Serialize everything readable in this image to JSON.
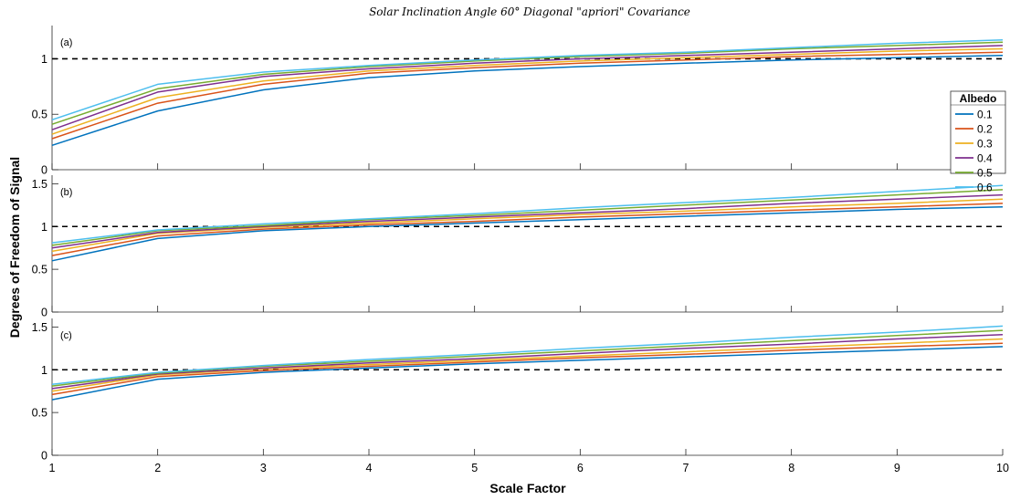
{
  "title": "Solar Inclination Angle 60° Diagonal \"apriori\" Covariance",
  "ylabel": "Degrees of Freedom of Signal",
  "xlabel": "Scale Factor",
  "colors": [
    "#0072bd",
    "#d95319",
    "#edb120",
    "#7e2f8e",
    "#77ac30",
    "#4dbeee"
  ],
  "legend": {
    "title": "Albedo",
    "entries": [
      "0.1",
      "0.2",
      "0.3",
      "0.4",
      "0.5",
      "0.6"
    ],
    "placement": "right"
  },
  "chart_data": [
    {
      "type": "line",
      "panel_label": "(a)",
      "x": [
        1,
        2,
        3,
        4,
        5,
        6,
        7,
        8,
        9,
        10
      ],
      "xlim": [
        1,
        10
      ],
      "ylim": [
        0,
        1.3
      ],
      "yticks": [
        0,
        0.5,
        1
      ],
      "ytick_labels": [
        "0",
        "0.5",
        "1"
      ],
      "reference_line": 1,
      "grid": false,
      "series": [
        {
          "name": "0.1",
          "values": [
            0.22,
            0.53,
            0.72,
            0.83,
            0.89,
            0.93,
            0.96,
            0.99,
            1.01,
            1.03
          ]
        },
        {
          "name": "0.2",
          "values": [
            0.28,
            0.6,
            0.77,
            0.87,
            0.92,
            0.96,
            0.99,
            1.02,
            1.04,
            1.06
          ]
        },
        {
          "name": "0.3",
          "values": [
            0.32,
            0.65,
            0.8,
            0.89,
            0.94,
            0.98,
            1.01,
            1.04,
            1.07,
            1.09
          ]
        },
        {
          "name": "0.4",
          "values": [
            0.36,
            0.7,
            0.84,
            0.91,
            0.96,
            1.0,
            1.03,
            1.06,
            1.09,
            1.12
          ]
        },
        {
          "name": "0.5",
          "values": [
            0.41,
            0.73,
            0.86,
            0.93,
            0.98,
            1.02,
            1.05,
            1.09,
            1.12,
            1.15
          ]
        },
        {
          "name": "0.6",
          "values": [
            0.45,
            0.77,
            0.88,
            0.94,
            0.99,
            1.03,
            1.06,
            1.1,
            1.14,
            1.17
          ]
        }
      ]
    },
    {
      "type": "line",
      "panel_label": "(b)",
      "x": [
        1,
        2,
        3,
        4,
        5,
        6,
        7,
        8,
        9,
        10
      ],
      "xlim": [
        1,
        10
      ],
      "ylim": [
        0,
        1.6
      ],
      "yticks": [
        0,
        0.5,
        1,
        1.5
      ],
      "ytick_labels": [
        "0",
        "0.5",
        "1",
        "1.5"
      ],
      "reference_line": 1,
      "grid": false,
      "series": [
        {
          "name": "0.1",
          "values": [
            0.6,
            0.86,
            0.95,
            1.0,
            1.04,
            1.08,
            1.12,
            1.16,
            1.2,
            1.23
          ]
        },
        {
          "name": "0.2",
          "values": [
            0.66,
            0.89,
            0.97,
            1.02,
            1.06,
            1.11,
            1.15,
            1.19,
            1.23,
            1.27
          ]
        },
        {
          "name": "0.3",
          "values": [
            0.71,
            0.92,
            0.99,
            1.04,
            1.09,
            1.14,
            1.18,
            1.23,
            1.27,
            1.32
          ]
        },
        {
          "name": "0.4",
          "values": [
            0.75,
            0.93,
            1.0,
            1.06,
            1.11,
            1.16,
            1.21,
            1.27,
            1.32,
            1.37
          ]
        },
        {
          "name": "0.5",
          "values": [
            0.78,
            0.95,
            1.01,
            1.08,
            1.13,
            1.19,
            1.25,
            1.31,
            1.37,
            1.43
          ]
        },
        {
          "name": "0.6",
          "values": [
            0.81,
            0.96,
            1.03,
            1.09,
            1.15,
            1.22,
            1.28,
            1.34,
            1.41,
            1.48
          ]
        }
      ]
    },
    {
      "type": "line",
      "panel_label": "(c)",
      "x": [
        1,
        2,
        3,
        4,
        5,
        6,
        7,
        8,
        9,
        10
      ],
      "xlim": [
        1,
        10
      ],
      "ylim": [
        0,
        1.6
      ],
      "yticks": [
        0,
        0.5,
        1,
        1.5
      ],
      "ytick_labels": [
        "0",
        "0.5",
        "1",
        "1.5"
      ],
      "xticks": [
        1,
        2,
        3,
        4,
        5,
        6,
        7,
        8,
        9,
        10
      ],
      "xtick_labels": [
        "1",
        "2",
        "3",
        "4",
        "5",
        "6",
        "7",
        "8",
        "9",
        "10"
      ],
      "reference_line": 1,
      "grid": false,
      "series": [
        {
          "name": "0.1",
          "values": [
            0.65,
            0.89,
            0.97,
            1.02,
            1.07,
            1.11,
            1.15,
            1.19,
            1.23,
            1.27
          ]
        },
        {
          "name": "0.2",
          "values": [
            0.71,
            0.92,
            0.99,
            1.04,
            1.09,
            1.14,
            1.18,
            1.23,
            1.27,
            1.31
          ]
        },
        {
          "name": "0.3",
          "values": [
            0.75,
            0.94,
            1.01,
            1.06,
            1.11,
            1.16,
            1.21,
            1.26,
            1.31,
            1.36
          ]
        },
        {
          "name": "0.4",
          "values": [
            0.78,
            0.95,
            1.02,
            1.08,
            1.13,
            1.19,
            1.25,
            1.3,
            1.36,
            1.41
          ]
        },
        {
          "name": "0.5",
          "values": [
            0.81,
            0.96,
            1.04,
            1.1,
            1.16,
            1.22,
            1.28,
            1.34,
            1.4,
            1.46
          ]
        },
        {
          "name": "0.6",
          "values": [
            0.83,
            0.97,
            1.05,
            1.12,
            1.18,
            1.25,
            1.31,
            1.38,
            1.44,
            1.51
          ]
        }
      ]
    }
  ]
}
